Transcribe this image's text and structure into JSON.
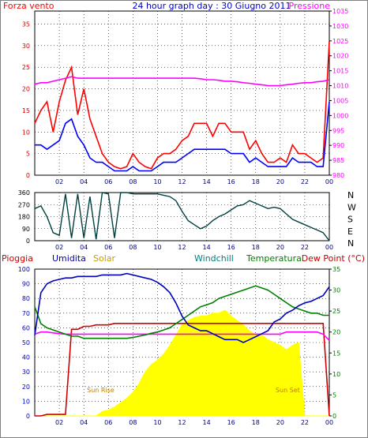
{
  "title": "24 hour graph day : 30 Giugno 2011",
  "colors": {
    "wind": "#ff0000",
    "gust_dark": "#0000ff",
    "pressure": "#ff00ff",
    "direction": "#004040",
    "humidity": "#0000c0",
    "solar": "#ffff00",
    "solar_label": "#c0a000",
    "windchill": "#008080",
    "temperature": "#008000",
    "dewpoint": "#ff00ff",
    "rain": "#d00000",
    "dewpoint_label": "#c00000",
    "frame": "#000000",
    "grid": "#000000"
  },
  "x_ticks": [
    "02",
    "04",
    "06",
    "08",
    "10",
    "12",
    "14",
    "16",
    "18",
    "20",
    "22",
    "00"
  ],
  "chart_data": [
    {
      "type": "line",
      "panel": "wind-pressure",
      "labels": {
        "left": "Forza vento",
        "right": "Pressione"
      },
      "y_left": {
        "range": [
          0,
          38
        ],
        "ticks": [
          "0",
          "5",
          "10",
          "15",
          "20",
          "25",
          "30",
          "35"
        ]
      },
      "y_right": {
        "range": [
          980,
          1035
        ],
        "ticks": [
          "980",
          "985",
          "990",
          "995",
          "1000",
          "1005",
          "1010",
          "1015",
          "1020",
          "1025",
          "1030",
          "1035"
        ]
      },
      "x_hours": [
        0,
        0.5,
        1,
        1.5,
        2,
        2.5,
        3,
        3.5,
        4,
        4.5,
        5,
        5.5,
        6,
        6.5,
        7,
        7.5,
        8,
        8.5,
        9,
        9.5,
        10,
        10.5,
        11,
        11.5,
        12,
        12.5,
        13,
        13.5,
        14,
        14.5,
        15,
        15.5,
        16,
        16.5,
        17,
        17.5,
        18,
        18.5,
        19,
        19.5,
        20,
        20.5,
        21,
        21.5,
        22,
        22.5,
        23,
        23.5,
        24
      ],
      "series": [
        {
          "name": "wind-gust",
          "values": [
            12,
            15,
            17,
            10,
            17,
            22,
            25,
            14,
            20,
            13,
            9,
            5,
            3,
            2,
            1.5,
            2,
            5,
            3,
            2,
            1.5,
            4,
            5,
            5,
            6,
            8,
            9,
            12,
            12,
            12,
            9,
            12,
            12,
            10,
            10,
            10,
            6,
            8,
            5,
            3,
            3,
            4,
            3,
            7,
            5,
            5,
            4,
            3,
            4,
            31
          ]
        },
        {
          "name": "wind-avg",
          "values": [
            7,
            7,
            6,
            7,
            8,
            12,
            13,
            9,
            7,
            4,
            3,
            3,
            2,
            1,
            1,
            1,
            2,
            1,
            1,
            1,
            2,
            3,
            3,
            3,
            4,
            5,
            6,
            6,
            6,
            6,
            6,
            6,
            5,
            5,
            5,
            3,
            4,
            3,
            2,
            2,
            2,
            2,
            4,
            3,
            3,
            3,
            2,
            2,
            17
          ]
        },
        {
          "name": "pressure",
          "values": [
            1010.5,
            1011,
            1011,
            1011.5,
            1012,
            1012.5,
            1013,
            1012.5,
            1012.5,
            1012.5,
            1012.5,
            1012.5,
            1012.5,
            1012.5,
            1012.5,
            1012.5,
            1012.5,
            1012.5,
            1012.5,
            1012.5,
            1012.5,
            1012.5,
            1012.5,
            1012.5,
            1012.5,
            1012.5,
            1012.5,
            1012.3,
            1012,
            1012,
            1011.8,
            1011.5,
            1011.5,
            1011.3,
            1011,
            1010.8,
            1010.5,
            1010.3,
            1010,
            1010,
            1010,
            1010.3,
            1010.5,
            1010.8,
            1011,
            1011,
            1011.3,
            1011.5,
            1012
          ]
        }
      ]
    },
    {
      "type": "line",
      "panel": "wind-direction",
      "labels": {
        "compass": [
          "N",
          "W",
          "S",
          "E",
          "N"
        ]
      },
      "y_left": {
        "range": [
          0,
          360
        ],
        "ticks": [
          "0",
          "90",
          "180",
          "270",
          "360"
        ]
      },
      "x_hours": [
        0,
        0.5,
        1,
        1.5,
        2,
        2.5,
        3,
        3.5,
        4,
        4.5,
        5,
        5.5,
        6,
        6.5,
        7,
        7.5,
        8,
        8.5,
        9,
        9.5,
        10,
        10.5,
        11,
        11.5,
        12,
        12.5,
        13,
        13.5,
        14,
        14.5,
        15,
        15.5,
        16,
        16.5,
        17,
        17.5,
        18,
        18.5,
        19,
        19.5,
        20,
        20.5,
        21,
        21.5,
        22,
        22.5,
        23,
        23.5,
        24
      ],
      "series": [
        {
          "name": "direction",
          "values": [
            240,
            260,
            180,
            60,
            40,
            350,
            20,
            350,
            20,
            330,
            10,
            360,
            350,
            20,
            360,
            360,
            350,
            350,
            350,
            350,
            350,
            340,
            330,
            300,
            220,
            150,
            120,
            90,
            110,
            150,
            180,
            200,
            230,
            260,
            270,
            300,
            280,
            260,
            240,
            250,
            240,
            200,
            160,
            140,
            120,
            100,
            80,
            60,
            0
          ]
        }
      ]
    },
    {
      "type": "line",
      "panel": "humidity-temperature-solar",
      "labels": {
        "rain": "Pioggia",
        "humidity": "Umidita",
        "solar": "Solar",
        "windchill": "Windchill",
        "temperature": "Temperatura",
        "dewpoint": "Dew Point (°C)",
        "sunrise": "Sun Rise",
        "sunset": "Sun Set"
      },
      "y_left": {
        "range": [
          0,
          100
        ],
        "ticks": [
          "0",
          "10",
          "20",
          "30",
          "40",
          "50",
          "60",
          "70",
          "80",
          "90",
          "100"
        ]
      },
      "y_right": {
        "range": [
          0,
          35
        ],
        "ticks": [
          "0",
          "5",
          "10",
          "15",
          "20",
          "25",
          "30",
          "35"
        ]
      },
      "x_hours": [
        0,
        0.5,
        1,
        1.5,
        2,
        2.5,
        3,
        3.5,
        4,
        4.5,
        5,
        5.5,
        6,
        6.5,
        7,
        7.5,
        8,
        8.5,
        9,
        9.5,
        10,
        10.5,
        11,
        11.5,
        12,
        12.5,
        13,
        13.5,
        14,
        14.5,
        15,
        15.5,
        16,
        16.5,
        17,
        17.5,
        18,
        18.5,
        19,
        19.5,
        20,
        20.5,
        21,
        21.5,
        22,
        22.5,
        23,
        23.5,
        24
      ],
      "series": [
        {
          "name": "humidity",
          "values": [
            55,
            84,
            90,
            92,
            93,
            94,
            94,
            95,
            95,
            95,
            95,
            96,
            96,
            96,
            96,
            97,
            96,
            95,
            94,
            93,
            91,
            88,
            84,
            77,
            68,
            62,
            60,
            58,
            58,
            56,
            54,
            52,
            52,
            52,
            50,
            52,
            54,
            56,
            58,
            64,
            66,
            70,
            72,
            75,
            77,
            78,
            80,
            82,
            88
          ]
        },
        {
          "name": "temperature",
          "values": [
            26,
            22,
            21,
            20.5,
            20,
            19.5,
            19,
            19,
            18.5,
            18.5,
            18.5,
            18.5,
            18.5,
            18.5,
            18.5,
            18.5,
            18.7,
            19,
            19.3,
            19.7,
            20,
            20.5,
            21,
            22,
            23,
            24,
            25,
            26,
            26.5,
            27,
            28,
            28.5,
            29,
            29.5,
            30,
            30.5,
            31,
            30.5,
            30,
            29,
            28,
            27,
            26,
            25.5,
            25,
            24.5,
            24.5,
            24,
            24
          ]
        },
        {
          "name": "dewpoint",
          "values": [
            19.5,
            20,
            20,
            19.8,
            19.6,
            19.5,
            19.5,
            19.5,
            19.5,
            19.5,
            19.5,
            19.5,
            19.5,
            19.5,
            19.5,
            19.5,
            19.5,
            19.5,
            19.5,
            19.5,
            19.5,
            19.5,
            19.5,
            19.5,
            19.5,
            19.5,
            19.5,
            19.5,
            19.5,
            19.5,
            19.5,
            19.5,
            19.5,
            19.5,
            19.5,
            19.5,
            19.5,
            19.5,
            19.5,
            19.5,
            19.5,
            20,
            20,
            20,
            20,
            20,
            20,
            19.5,
            18
          ]
        },
        {
          "name": "solar",
          "values": [
            0,
            0,
            0,
            0,
            0,
            0,
            0,
            0,
            0,
            0,
            0,
            3,
            4,
            6,
            9,
            12,
            16,
            22,
            30,
            35,
            38,
            42,
            48,
            55,
            62,
            65,
            67,
            68,
            68,
            70,
            70,
            72,
            68,
            65,
            62,
            58,
            55,
            55,
            52,
            50,
            48,
            45,
            48,
            50,
            0,
            0,
            0,
            0,
            0
          ]
        },
        {
          "name": "rain",
          "values": [
            0,
            0,
            1,
            1,
            1,
            1,
            59,
            59,
            61,
            61,
            62,
            62,
            62,
            63,
            63,
            63,
            63,
            63,
            63,
            63,
            63,
            63,
            63,
            63,
            63,
            63,
            63,
            63,
            63,
            63,
            63,
            63,
            63,
            63,
            63,
            63,
            63,
            63,
            63,
            63,
            63,
            63,
            63,
            63,
            63,
            63,
            63,
            63,
            0
          ]
        }
      ],
      "sunrise_hour": 5.5,
      "sunset_hour": 21.0
    }
  ]
}
